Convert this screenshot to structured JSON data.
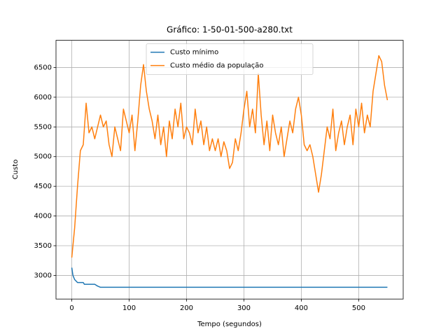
{
  "chart_data": {
    "type": "line",
    "title": "Gráfico: 1-50-01-500-a280.txt",
    "x_label": "Tempo (segundos)",
    "y_label": "Custo",
    "xlim": [
      -27.5,
      577.5
    ],
    "ylim": [
      2602,
      6958
    ],
    "xticks": [
      0,
      100,
      200,
      300,
      400,
      500
    ],
    "yticks": [
      3000,
      3500,
      4000,
      4500,
      5000,
      5500,
      6000,
      6500
    ],
    "grid": true,
    "legend": "upper center",
    "series": [
      {
        "name": "Custo mínimo",
        "color": "#1f77b4",
        "x": [
          0,
          2,
          5,
          10,
          20,
          22,
          40,
          45,
          50,
          550
        ],
        "values": [
          3130,
          3000,
          2930,
          2880,
          2880,
          2850,
          2850,
          2820,
          2800,
          2800
        ]
      },
      {
        "name": "Custo médio da população",
        "color": "#ff7f0e",
        "x": [
          0,
          5,
          10,
          15,
          20,
          25,
          30,
          35,
          40,
          45,
          50,
          55,
          60,
          65,
          70,
          75,
          80,
          85,
          90,
          95,
          100,
          105,
          110,
          115,
          120,
          125,
          130,
          135,
          140,
          145,
          150,
          155,
          160,
          165,
          170,
          175,
          180,
          185,
          190,
          195,
          200,
          205,
          210,
          215,
          220,
          225,
          230,
          235,
          240,
          245,
          250,
          255,
          260,
          265,
          270,
          275,
          280,
          285,
          290,
          295,
          300,
          305,
          310,
          315,
          320,
          325,
          330,
          335,
          340,
          345,
          350,
          355,
          360,
          365,
          370,
          375,
          380,
          385,
          390,
          395,
          400,
          405,
          410,
          415,
          420,
          425,
          430,
          435,
          440,
          445,
          450,
          455,
          460,
          465,
          470,
          475,
          480,
          485,
          490,
          495,
          500,
          505,
          510,
          515,
          520,
          525,
          530,
          535,
          540,
          545,
          550
        ],
        "values": [
          3300,
          3800,
          4500,
          5100,
          5200,
          5900,
          5400,
          5500,
          5300,
          5500,
          5700,
          5500,
          5600,
          5200,
          5000,
          5500,
          5300,
          5100,
          5800,
          5600,
          5400,
          5700,
          5100,
          5600,
          6200,
          6550,
          6100,
          5800,
          5600,
          5300,
          5700,
          5200,
          5500,
          5000,
          5600,
          5300,
          5800,
          5500,
          5900,
          5300,
          5500,
          5400,
          5200,
          5800,
          5400,
          5600,
          5200,
          5500,
          5100,
          5300,
          5100,
          5300,
          5000,
          5250,
          5100,
          4800,
          4900,
          5300,
          5100,
          5400,
          5800,
          6100,
          5500,
          5800,
          5400,
          6400,
          5700,
          5200,
          5600,
          5100,
          5700,
          5400,
          5200,
          5500,
          5000,
          5300,
          5600,
          5400,
          5800,
          6000,
          5700,
          5200,
          5100,
          5200,
          5000,
          4700,
          4400,
          4700,
          5100,
          5500,
          5300,
          5800,
          5100,
          5400,
          5600,
          5200,
          5500,
          5700,
          5200,
          5800,
          5500,
          5900,
          5400,
          5700,
          5500,
          6100,
          6400,
          6700,
          6600,
          6200,
          5950
        ]
      }
    ]
  }
}
